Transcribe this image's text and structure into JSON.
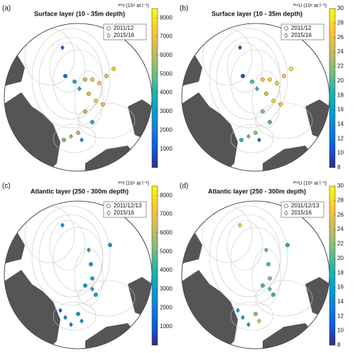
{
  "panels": [
    {
      "label": "(a)",
      "title": "Surface layer (10 - 35m depth)",
      "colorbar": {
        "label": "¹²⁹I (10⁶ at l⁻¹)",
        "lim": [
          0,
          8500
        ],
        "ticks": [
          1000,
          2000,
          3000,
          4000,
          5000,
          6000,
          7000,
          8000
        ]
      },
      "legend": [
        "2011/12",
        "2015/16"
      ],
      "points": [
        {
          "marker": "diamond",
          "value": 1500
        },
        {
          "marker": "circle",
          "value": 1500
        },
        {
          "marker": "circle",
          "value": 3500
        },
        {
          "marker": "diamond",
          "value": 3000
        },
        {
          "marker": "circle",
          "value": 6500
        },
        {
          "marker": "circle",
          "value": 7000
        },
        {
          "marker": "circle",
          "value": 7500
        },
        {
          "marker": "circle",
          "value": 7000
        },
        {
          "marker": "circle",
          "value": 7500
        },
        {
          "marker": "circle",
          "value": 6500
        },
        {
          "marker": "circle",
          "value": 7500
        },
        {
          "marker": "circle",
          "value": 7000
        },
        {
          "marker": "circle",
          "value": 6000
        },
        {
          "marker": "circle",
          "value": 4000
        },
        {
          "marker": "circle",
          "value": 5000
        },
        {
          "marker": "diamond",
          "value": 5500
        },
        {
          "marker": "circle",
          "value": 6000
        },
        {
          "marker": "diamond",
          "value": 2000
        }
      ]
    },
    {
      "label": "(b)",
      "title": "Surface layer (10 - 35m depth)",
      "colorbar": {
        "label": "²³⁶U (10⁶ at l⁻¹)",
        "lim": [
          8,
          30
        ],
        "ticks": [
          8,
          10,
          12,
          14,
          16,
          18,
          20,
          22,
          24,
          26,
          28,
          30
        ]
      },
      "legend": [
        "2011/12",
        "2015/16"
      ],
      "points": [
        {
          "marker": "diamond",
          "value": 10
        },
        {
          "marker": "circle",
          "value": 10
        },
        {
          "marker": "circle",
          "value": 20
        },
        {
          "marker": "diamond",
          "value": 18
        },
        {
          "marker": "circle",
          "value": 27
        },
        {
          "marker": "circle",
          "value": 28
        },
        {
          "marker": "circle",
          "value": 28
        },
        {
          "marker": "circle",
          "value": 27
        },
        {
          "marker": "circle",
          "value": 29
        },
        {
          "marker": "circle",
          "value": 25
        },
        {
          "marker": "circle",
          "value": 28
        },
        {
          "marker": "circle",
          "value": 27
        },
        {
          "marker": "circle",
          "value": 22
        },
        {
          "marker": "circle",
          "value": 20
        },
        {
          "marker": "circle",
          "value": 19
        },
        {
          "marker": "diamond",
          "value": 21
        },
        {
          "marker": "circle",
          "value": 22
        },
        {
          "marker": "diamond",
          "value": 12
        }
      ]
    },
    {
      "label": "(c)",
      "title": "Atlantic layer (250 - 300m depth)",
      "colorbar": {
        "label": "¹²⁹I (10⁶ at l⁻¹)",
        "lim": [
          0,
          8500
        ],
        "ticks": [
          1000,
          2000,
          3000,
          4000,
          5000,
          6000,
          7000,
          8000
        ]
      },
      "legend": [
        "2011/12/13",
        "2015/16"
      ],
      "points": [
        {
          "marker": "diamond",
          "value": 2500
        },
        {
          "marker": "diamond",
          "value": 3500
        },
        {
          "marker": "circle",
          "value": 3000
        },
        {
          "marker": "circle",
          "value": 3000
        },
        {
          "marker": "circle",
          "value": 3500
        },
        {
          "marker": "circle",
          "value": 3000
        },
        {
          "marker": "diamond",
          "value": 3000
        },
        {
          "marker": "circle",
          "value": 3000
        },
        {
          "marker": "diamond",
          "value": 2000
        },
        {
          "marker": "diamond",
          "value": 2000
        },
        {
          "marker": "circle",
          "value": 3000
        },
        {
          "marker": "diamond",
          "value": 2500
        },
        {
          "marker": "diamond",
          "value": 1500
        }
      ]
    },
    {
      "label": "(d)",
      "title": "Atlantic layer (250 - 300m depth)",
      "colorbar": {
        "label": "²³⁶U (10⁶ at l⁻¹)",
        "lim": [
          8,
          30
        ],
        "ticks": [
          8,
          10,
          12,
          14,
          16,
          18,
          20,
          22,
          24,
          26,
          28,
          30
        ]
      },
      "legend": [
        "2011/12/13",
        "2015/16"
      ],
      "points": [
        {
          "marker": "diamond",
          "value": 27
        },
        {
          "marker": "diamond",
          "value": 20
        },
        {
          "marker": "circle",
          "value": 20
        },
        {
          "marker": "circle",
          "value": 18
        },
        {
          "marker": "circle",
          "value": 22
        },
        {
          "marker": "circle",
          "value": 20
        },
        {
          "marker": "diamond",
          "value": 20
        },
        {
          "marker": "circle",
          "value": 19
        },
        {
          "marker": "diamond",
          "value": 17
        },
        {
          "marker": "diamond",
          "value": 16
        },
        {
          "marker": "circle",
          "value": 22
        },
        {
          "marker": "diamond",
          "value": 24
        },
        {
          "marker": "diamond",
          "value": 16
        }
      ]
    }
  ]
}
